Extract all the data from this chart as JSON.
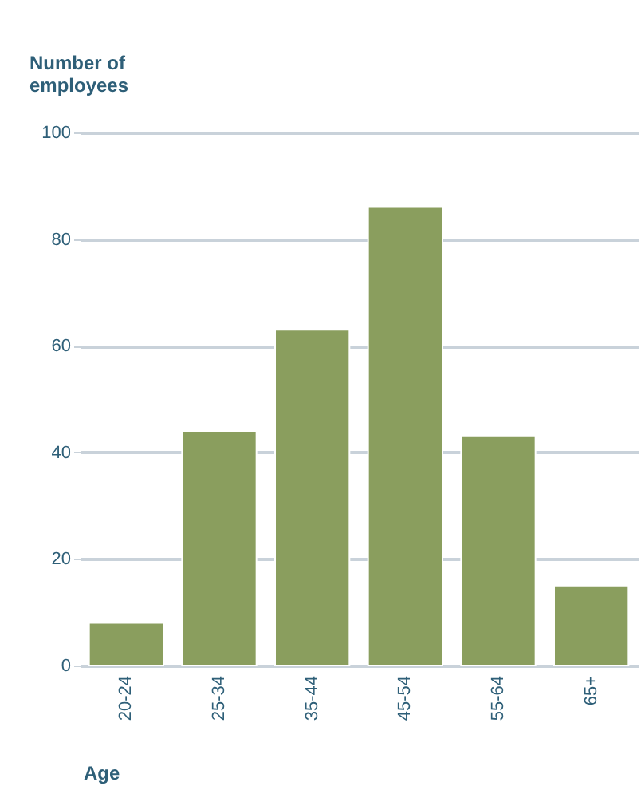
{
  "chart_data": {
    "type": "bar",
    "ylabel": "Number of employees",
    "xlabel": "Age",
    "categories": [
      "20-24",
      "25-34",
      "35-44",
      "45-54",
      "55-64",
      "65+"
    ],
    "values": [
      8,
      44,
      63,
      86,
      43,
      15
    ],
    "color": "#8a9e5e",
    "ylim": [
      0,
      100
    ],
    "yticks": [
      0,
      20,
      40,
      60,
      80,
      100
    ],
    "grid": "y"
  }
}
